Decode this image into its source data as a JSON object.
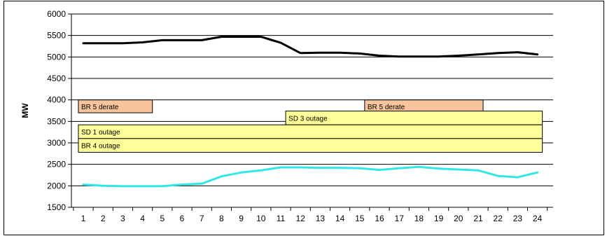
{
  "chart_data": {
    "type": "line",
    "title": "",
    "xlabel": "",
    "ylabel": "MW",
    "x": [
      1,
      2,
      3,
      4,
      5,
      6,
      7,
      8,
      9,
      10,
      11,
      12,
      13,
      14,
      15,
      16,
      17,
      18,
      19,
      20,
      21,
      22,
      23,
      24
    ],
    "ylim": [
      1500,
      6000
    ],
    "yticks": [
      1500,
      2000,
      2500,
      3000,
      3500,
      4000,
      4500,
      5000,
      5500,
      6000
    ],
    "grid": "horizontal",
    "legend": "none",
    "series": [
      {
        "color": "#000000",
        "values": [
          5320,
          5320,
          5320,
          5340,
          5390,
          5390,
          5390,
          5470,
          5470,
          5470,
          5330,
          5090,
          5100,
          5100,
          5080,
          5030,
          5010,
          5010,
          5010,
          5030,
          5060,
          5090,
          5110,
          5060
        ]
      },
      {
        "color": "#33e6e6",
        "values": [
          2030,
          2000,
          1990,
          1990,
          1990,
          2030,
          2050,
          2220,
          2310,
          2360,
          2430,
          2430,
          2420,
          2420,
          2410,
          2370,
          2410,
          2440,
          2400,
          2380,
          2360,
          2230,
          2200,
          2310
        ]
      }
    ],
    "annotations": [
      {
        "text": "BR 5 derate",
        "x_start": 0.75,
        "x_end": 4.5,
        "y_low": 3700,
        "y_high": 4000,
        "color": "#f9c49b"
      },
      {
        "text": "BR 5 derate",
        "x_start": 15.25,
        "x_end": 21.25,
        "y_low": 3700,
        "y_high": 4000,
        "color": "#f9c49b"
      },
      {
        "text": "SD 3 outage",
        "x_start": 11.25,
        "x_end": 24.25,
        "y_low": 3420,
        "y_high": 3740,
        "color": "#ffff99"
      },
      {
        "text": "SD 1 outage",
        "x_start": 0.75,
        "x_end": 24.25,
        "y_low": 3100,
        "y_high": 3420,
        "color": "#ffff99"
      },
      {
        "text": "BR 4 outage",
        "x_start": 0.75,
        "x_end": 24.25,
        "y_low": 2780,
        "y_high": 3100,
        "color": "#ffff99"
      }
    ]
  }
}
